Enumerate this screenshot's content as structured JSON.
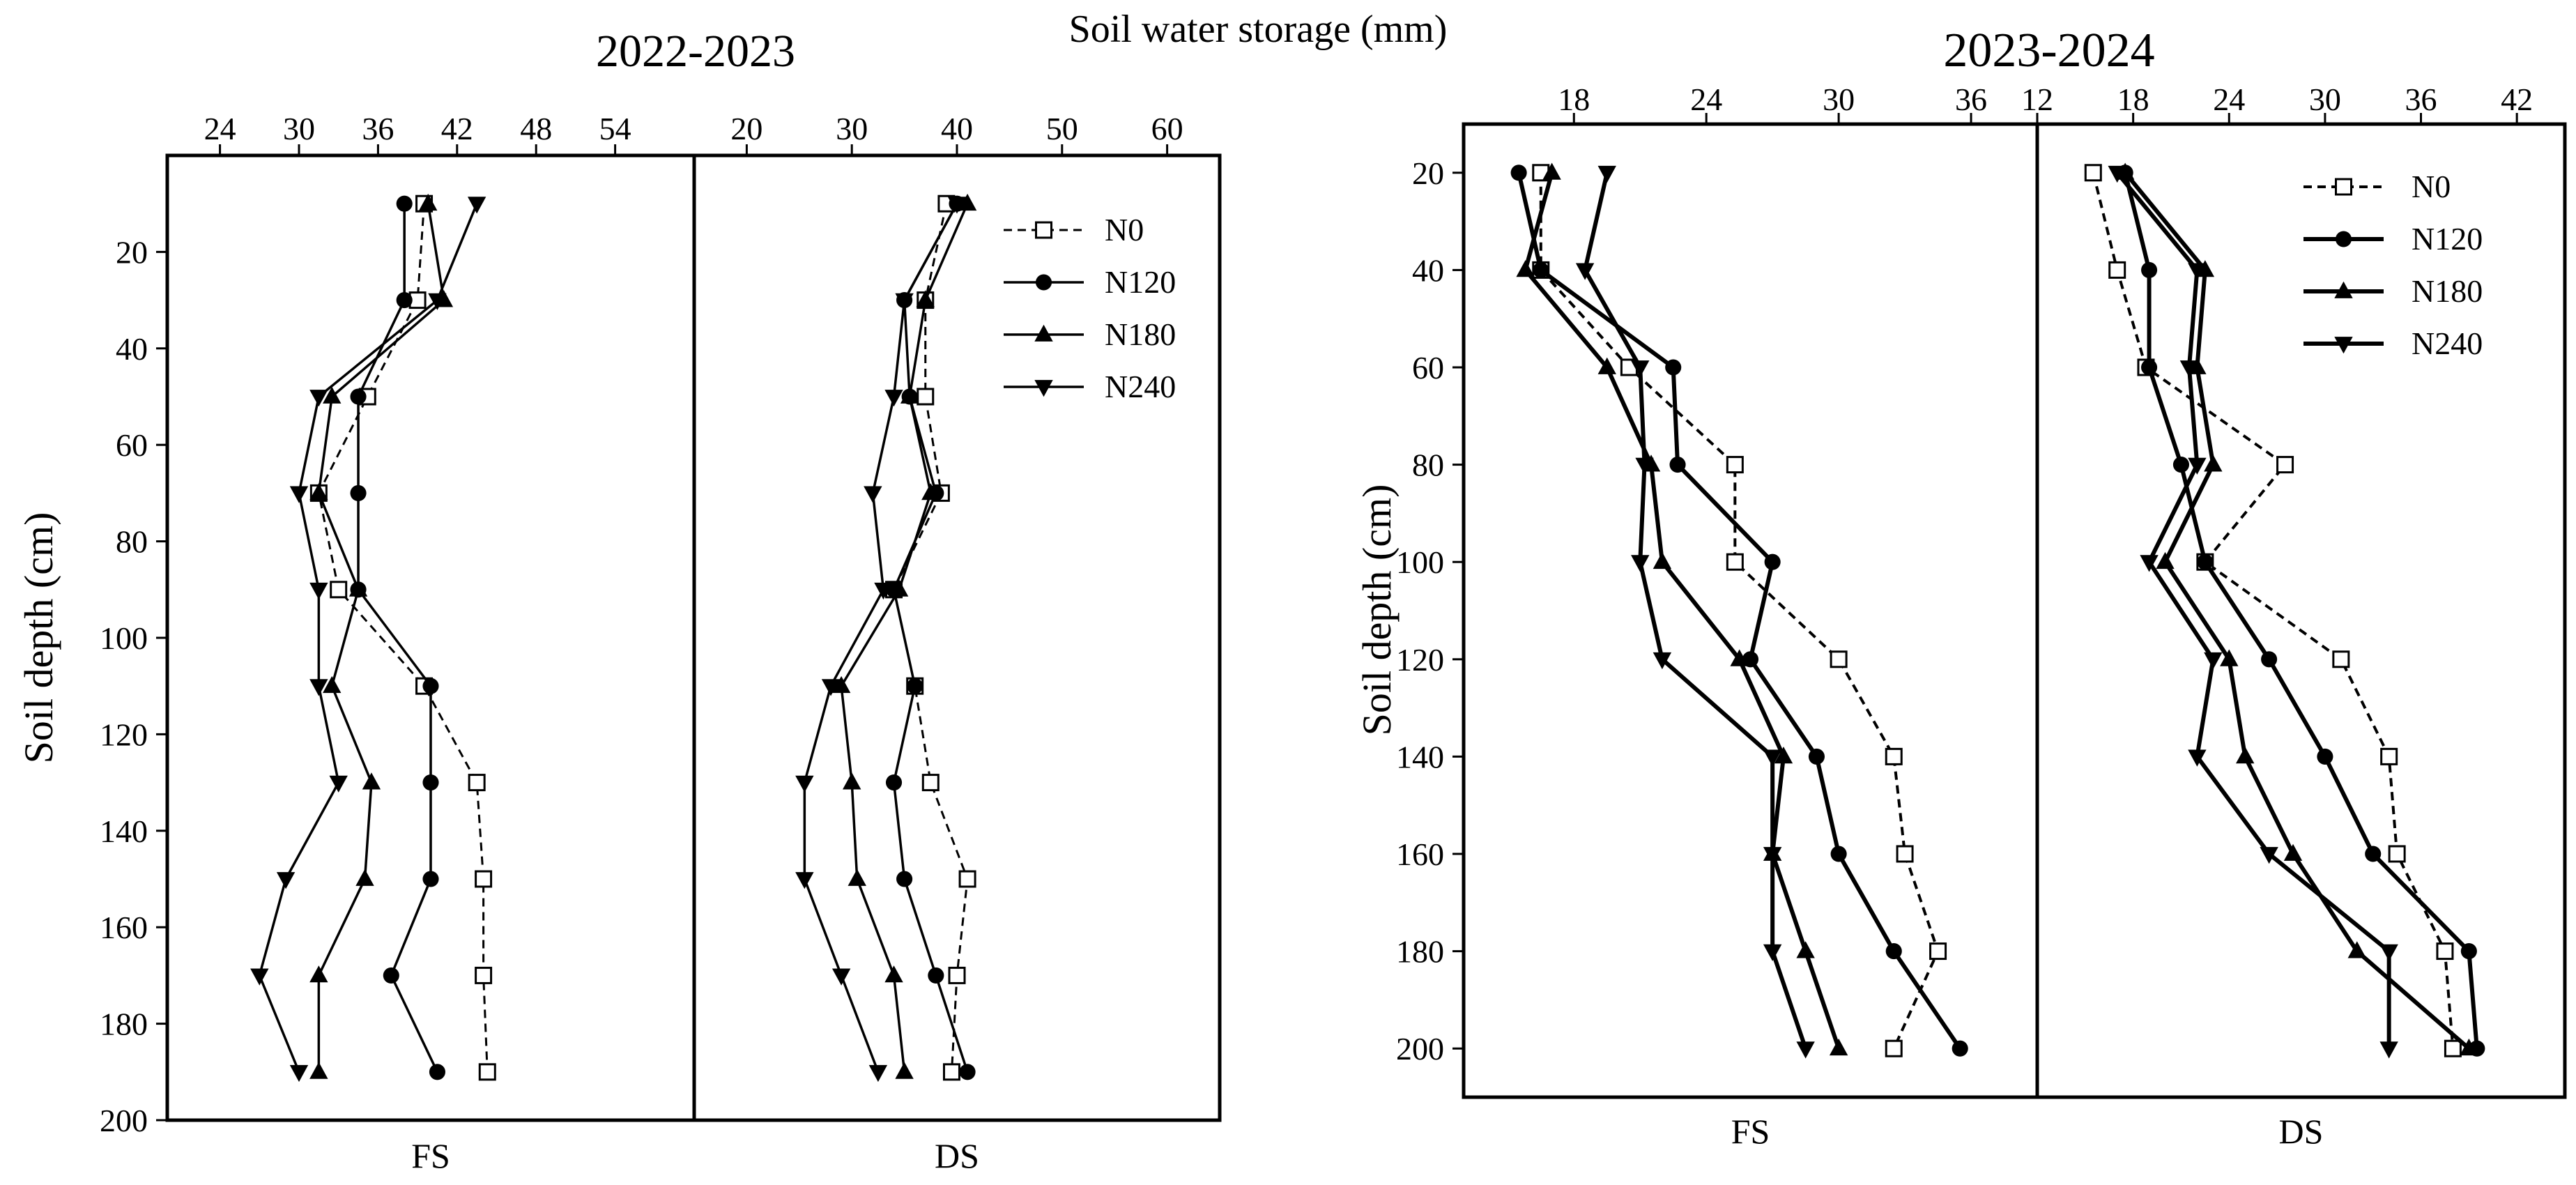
{
  "figure": {
    "shared_top_label": "Soil water storage (mm)"
  },
  "chart_data": [
    {
      "type": "line",
      "title": "2022-2023",
      "ylabel": "Soil depth (cm)",
      "xlabel": "Soil water storage (mm)",
      "y": {
        "range": [
          200,
          0
        ],
        "ticks": [
          20,
          40,
          60,
          80,
          100,
          120,
          140,
          160,
          180,
          200
        ]
      },
      "legend": {
        "position": "top-right",
        "entries": [
          "N0",
          "N120",
          "N180",
          "N240"
        ]
      },
      "panels": [
        {
          "name": "FS",
          "x": {
            "range": [
              20,
              60
            ],
            "ticks": [
              24,
              30,
              36,
              42,
              48,
              54
            ]
          },
          "series": [
            {
              "name": "N0",
              "depth": [
                10,
                30,
                50,
                70,
                90,
                110,
                130,
                150,
                170,
                190
              ],
              "values": [
                39.5,
                39.0,
                35.2,
                31.5,
                33.0,
                39.5,
                43.5,
                44.0,
                44.0,
                44.3
              ]
            },
            {
              "name": "N120",
              "depth": [
                10,
                30,
                50,
                70,
                90,
                110,
                130,
                150,
                170,
                190
              ],
              "values": [
                38.0,
                38.0,
                34.5,
                34.5,
                34.5,
                40.0,
                40.0,
                40.0,
                37.0,
                40.5
              ]
            },
            {
              "name": "N180",
              "depth": [
                10,
                30,
                50,
                70,
                90,
                110,
                130,
                150,
                170,
                190
              ],
              "values": [
                39.8,
                41.0,
                32.5,
                31.5,
                34.5,
                32.5,
                35.5,
                35.0,
                31.5,
                31.5
              ]
            },
            {
              "name": "N240",
              "depth": [
                10,
                30,
                50,
                70,
                90,
                110,
                130,
                150,
                170,
                190
              ],
              "values": [
                43.5,
                40.5,
                31.5,
                30.0,
                31.5,
                31.5,
                33.0,
                29.0,
                27.0,
                30.0
              ]
            }
          ]
        },
        {
          "name": "DS",
          "x": {
            "range": [
              15,
              65
            ],
            "ticks": [
              20,
              30,
              40,
              50,
              60
            ]
          },
          "series": [
            {
              "name": "N0",
              "depth": [
                10,
                30,
                50,
                70,
                90,
                110,
                130,
                150,
                170,
                190
              ],
              "values": [
                39.0,
                37.0,
                37.0,
                38.5,
                34.0,
                36.0,
                37.5,
                41.0,
                40.0,
                39.5
              ]
            },
            {
              "name": "N120",
              "depth": [
                10,
                30,
                50,
                70,
                90,
                110,
                130,
                150,
                170,
                190
              ],
              "values": [
                40.0,
                35.0,
                35.5,
                38.0,
                34.0,
                36.0,
                34.0,
                35.0,
                38.0,
                41.0
              ]
            },
            {
              "name": "N180",
              "depth": [
                10,
                30,
                50,
                70,
                90,
                110,
                130,
                150,
                170,
                190
              ],
              "values": [
                41.0,
                37.0,
                35.5,
                37.5,
                34.5,
                29.0,
                30.0,
                30.5,
                34.0,
                35.0
              ]
            },
            {
              "name": "N240",
              "depth": [
                10,
                30,
                50,
                70,
                90,
                110,
                130,
                150,
                170,
                190
              ],
              "values": [
                40.0,
                35.0,
                34.0,
                32.0,
                33.0,
                28.0,
                25.5,
                25.5,
                29.0,
                32.5
              ]
            }
          ]
        }
      ]
    },
    {
      "type": "line",
      "title": "2023-2024",
      "ylabel": "Soil depth (cm)",
      "y": {
        "range": [
          210,
          10
        ],
        "ticks": [
          20,
          40,
          60,
          80,
          100,
          120,
          140,
          160,
          180,
          200
        ]
      },
      "legend": {
        "position": "top-right",
        "entries": [
          "N0",
          "N120",
          "N180",
          "N240"
        ]
      },
      "panels": [
        {
          "name": "FS",
          "x": {
            "range": [
              13,
              39
            ],
            "ticks": [
              18,
              24,
              30,
              36
            ]
          },
          "series": [
            {
              "name": "N0",
              "depth": [
                20,
                40,
                60,
                80,
                100,
                120,
                140,
                160,
                180,
                200
              ],
              "values": [
                16.5,
                16.5,
                20.5,
                25.3,
                25.3,
                30.0,
                32.5,
                33.0,
                34.5,
                32.5
              ]
            },
            {
              "name": "N120",
              "depth": [
                20,
                40,
                60,
                80,
                100,
                120,
                140,
                160,
                180,
                200
              ],
              "values": [
                15.5,
                16.5,
                22.5,
                22.7,
                27.0,
                26.0,
                29.0,
                30.0,
                32.5,
                35.5
              ]
            },
            {
              "name": "N180",
              "depth": [
                20,
                40,
                60,
                80,
                100,
                120,
                140,
                160,
                180,
                200
              ],
              "values": [
                17.0,
                15.8,
                19.5,
                21.5,
                22.0,
                25.5,
                27.5,
                27.0,
                28.5,
                30.0
              ]
            },
            {
              "name": "N240",
              "depth": [
                20,
                40,
                60,
                80,
                100,
                120,
                140,
                160,
                180,
                200
              ],
              "values": [
                19.5,
                18.5,
                21.0,
                21.2,
                21.0,
                22.0,
                27.0,
                27.0,
                27.0,
                28.5
              ]
            }
          ]
        },
        {
          "name": "DS",
          "x": {
            "range": [
              12,
              45
            ],
            "ticks": [
              12,
              18,
              24,
              30,
              36,
              42
            ]
          },
          "series": [
            {
              "name": "N0",
              "depth": [
                20,
                40,
                60,
                80,
                100,
                120,
                140,
                160,
                180,
                200
              ],
              "values": [
                15.5,
                17.0,
                18.8,
                27.5,
                22.5,
                31.0,
                34.0,
                34.5,
                37.5,
                38.0
              ]
            },
            {
              "name": "N120",
              "depth": [
                20,
                40,
                60,
                80,
                100,
                120,
                140,
                160,
                180,
                200
              ],
              "values": [
                17.5,
                19.0,
                19.0,
                21.0,
                22.5,
                26.5,
                30.0,
                33.0,
                39.0,
                39.5
              ]
            },
            {
              "name": "N180",
              "depth": [
                20,
                40,
                60,
                80,
                100,
                120,
                140,
                160,
                180,
                200
              ],
              "values": [
                17.5,
                22.5,
                22.0,
                23.0,
                20.0,
                24.0,
                25.0,
                28.0,
                32.0,
                39.0
              ]
            },
            {
              "name": "N240",
              "depth": [
                20,
                40,
                60,
                80,
                100,
                120,
                140,
                160,
                180,
                200
              ],
              "values": [
                17.0,
                22.0,
                21.5,
                22.0,
                19.0,
                23.0,
                22.0,
                26.5,
                34.0,
                34.0
              ]
            }
          ]
        }
      ]
    }
  ],
  "styles": {
    "N0": {
      "marker": "square-open",
      "dash": "dashed",
      "color": "#000000"
    },
    "N120": {
      "marker": "circle",
      "dash": "solid",
      "color": "#000000"
    },
    "N180": {
      "marker": "triangle-up",
      "dash": "solid",
      "color": "#000000"
    },
    "N240": {
      "marker": "triangle-down",
      "dash": "solid",
      "color": "#000000"
    }
  }
}
